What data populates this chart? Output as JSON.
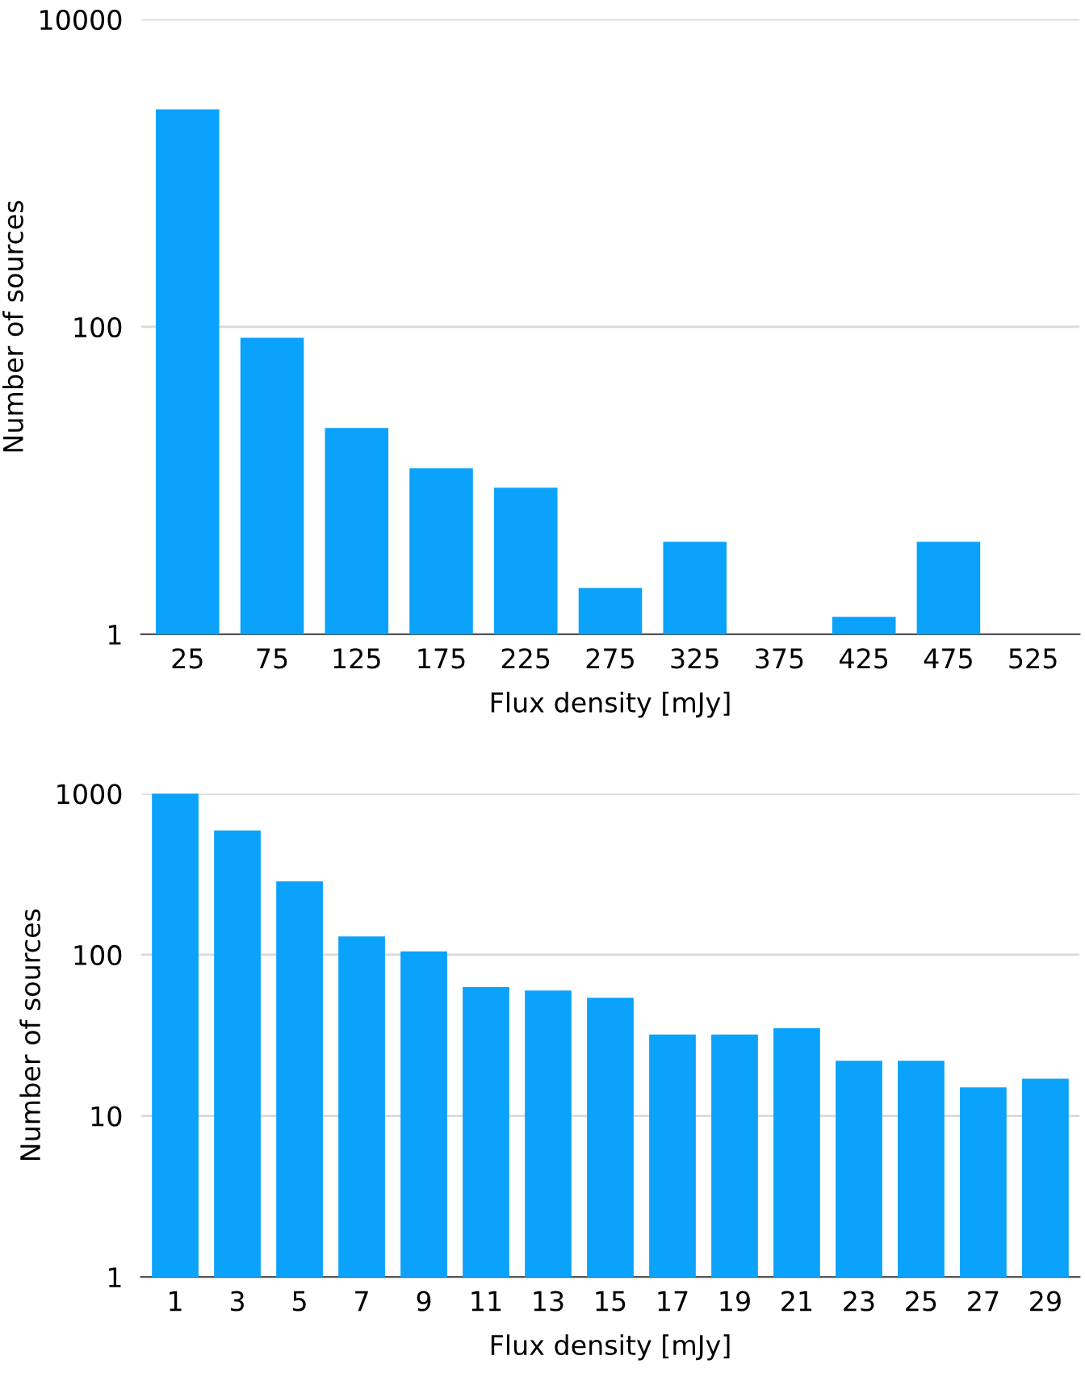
{
  "chart_data": [
    {
      "type": "bar",
      "xlabel": "Flux density [mJy]",
      "ylabel": "Number of sources",
      "categories": [
        "25",
        "75",
        "125",
        "175",
        "225",
        "275",
        "325",
        "375",
        "425",
        "475",
        "525"
      ],
      "values": [
        2600,
        85,
        22,
        12,
        9,
        2,
        4,
        null,
        1.3,
        4,
        null
      ],
      "color": "#0aa2fa",
      "log": "y",
      "ylim": [
        1,
        10000
      ],
      "yticks": [
        1,
        100,
        10000
      ],
      "grid": "y"
    },
    {
      "type": "bar",
      "xlabel": "Flux density [mJy]",
      "ylabel": "Number of sources",
      "categories": [
        "1",
        "3",
        "5",
        "7",
        "9",
        "11",
        "13",
        "15",
        "17",
        "19",
        "21",
        "23",
        "25",
        "27",
        "29"
      ],
      "values": [
        1000,
        590,
        285,
        130,
        105,
        63,
        60,
        54,
        32,
        32,
        35,
        22,
        22,
        15,
        17
      ],
      "color": "#0aa2fa",
      "log": "y",
      "ylim": [
        1,
        1000
      ],
      "yticks": [
        1,
        10,
        100,
        1000
      ],
      "grid": "y"
    }
  ]
}
